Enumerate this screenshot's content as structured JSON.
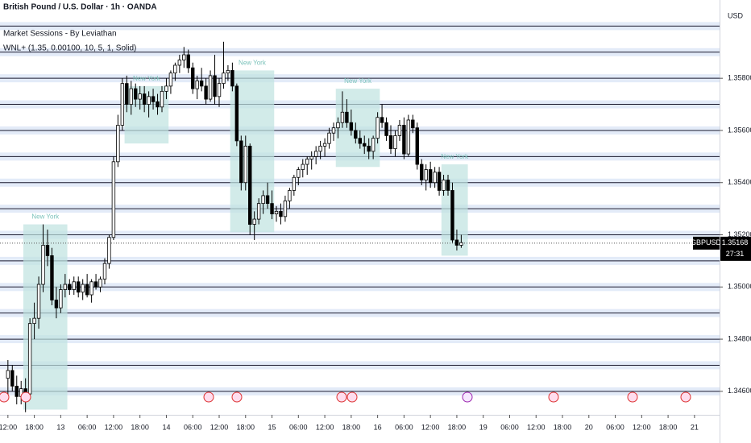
{
  "chart_data": {
    "type": "candlestick",
    "title": "British Pound / U.S. Dollar · 1h · OANDA",
    "indicators": [
      "Market Sessions - By Leviathan",
      "WNL+ (1.35, 0.00100, 10, 5, 1, Solid)"
    ],
    "currency": "USD",
    "symbol": "GBPUSD",
    "last_price": {
      "value": 1.35168,
      "label": "1.35168"
    },
    "countdown": "27:31",
    "open": [
      1.3465,
      1.3468,
      1.3462,
      1.3458,
      1.3461,
      1.3459,
      1.3486,
      1.3488,
      1.3501,
      1.3516,
      1.3512,
      1.3495,
      1.3492,
      1.3499,
      1.3501,
      1.3499,
      1.3502,
      1.3498,
      1.3501,
      1.3497,
      1.3502,
      1.35,
      1.3503,
      1.3509,
      1.3519,
      1.3548,
      1.3562,
      1.3578,
      1.357,
      1.3576,
      1.3572,
      1.3574,
      1.357,
      1.3573,
      1.3571,
      1.3569,
      1.3575,
      1.3577,
      1.3582,
      1.3585,
      1.3587,
      1.3589,
      1.3584,
      1.3576,
      1.3579,
      1.3577,
      1.3572,
      1.3581,
      1.3573,
      1.3578,
      1.3582,
      1.3583,
      1.3577,
      1.3556,
      1.354,
      1.3554,
      1.3524,
      1.3526,
      1.3532,
      1.3535,
      1.3532,
      1.3528,
      1.3529,
      1.3527,
      1.3533,
      1.3537,
      1.3542,
      1.3545,
      1.3547,
      1.3549,
      1.355,
      1.3552,
      1.3554,
      1.3555,
      1.3559,
      1.3561,
      1.3563,
      1.3567,
      1.3563,
      1.356,
      1.3557,
      1.3555,
      1.3554,
      1.3552,
      1.3557,
      1.3565,
      1.3563,
      1.3558,
      1.3553,
      1.3558,
      1.3562,
      1.3551,
      1.3564,
      1.3561,
      1.3547,
      1.3541,
      1.3545,
      1.354,
      1.3544,
      1.3537,
      1.3541,
      1.3537,
      1.3518,
      1.3516
    ],
    "high": [
      1.3472,
      1.347,
      1.3466,
      1.3464,
      1.3465,
      1.3488,
      1.3494,
      1.3504,
      1.3524,
      1.3522,
      1.3515,
      1.35,
      1.3501,
      1.3505,
      1.3503,
      1.3504,
      1.3504,
      1.3503,
      1.3505,
      1.3503,
      1.3505,
      1.3504,
      1.3511,
      1.352,
      1.355,
      1.3566,
      1.358,
      1.3581,
      1.3579,
      1.3578,
      1.3577,
      1.3577,
      1.3575,
      1.3576,
      1.3574,
      1.3577,
      1.358,
      1.3583,
      1.3586,
      1.3589,
      1.3592,
      1.3591,
      1.3586,
      1.3581,
      1.3584,
      1.358,
      1.3583,
      1.3589,
      1.358,
      1.3594,
      1.3585,
      1.3586,
      1.3578,
      1.3558,
      1.3558,
      1.3555,
      1.3529,
      1.3534,
      1.3537,
      1.354,
      1.3537,
      1.3531,
      1.3532,
      1.3535,
      1.3538,
      1.3543,
      1.3546,
      1.3549,
      1.355,
      1.3552,
      1.3554,
      1.3556,
      1.3557,
      1.3561,
      1.3563,
      1.3565,
      1.3575,
      1.3572,
      1.3568,
      1.3563,
      1.356,
      1.3558,
      1.3557,
      1.3558,
      1.3567,
      1.357,
      1.3565,
      1.3562,
      1.356,
      1.3564,
      1.3565,
      1.3566,
      1.3566,
      1.3563,
      1.3549,
      1.3547,
      1.3548,
      1.3546,
      1.3546,
      1.3543,
      1.3543,
      1.354,
      1.3522,
      1.352
    ],
    "low": [
      1.3458,
      1.346,
      1.3455,
      1.3455,
      1.3452,
      1.3458,
      1.348,
      1.3484,
      1.3498,
      1.3508,
      1.3493,
      1.3488,
      1.349,
      1.3496,
      1.3497,
      1.3497,
      1.3496,
      1.3495,
      1.3496,
      1.3494,
      1.3499,
      1.3498,
      1.3501,
      1.3507,
      1.3518,
      1.3546,
      1.356,
      1.3567,
      1.3566,
      1.3569,
      1.3568,
      1.3567,
      1.3565,
      1.3568,
      1.3566,
      1.3567,
      1.3572,
      1.3574,
      1.3579,
      1.3582,
      1.3584,
      1.3582,
      1.3574,
      1.3572,
      1.3575,
      1.357,
      1.3571,
      1.357,
      1.3569,
      1.3576,
      1.3579,
      1.3575,
      1.3554,
      1.3537,
      1.3537,
      1.352,
      1.3518,
      1.3524,
      1.3528,
      1.353,
      1.3526,
      1.3525,
      1.3524,
      1.3525,
      1.353,
      1.3535,
      1.3539,
      1.3542,
      1.3543,
      1.3545,
      1.3547,
      1.3549,
      1.355,
      1.3553,
      1.3556,
      1.3557,
      1.3561,
      1.3561,
      1.3558,
      1.3555,
      1.3553,
      1.3551,
      1.3549,
      1.3549,
      1.3555,
      1.3561,
      1.3556,
      1.3551,
      1.355,
      1.3556,
      1.3549,
      1.355,
      1.3559,
      1.3545,
      1.3539,
      1.3537,
      1.3538,
      1.3538,
      1.3535,
      1.3535,
      1.3535,
      1.3517,
      1.3514,
      1.3515
    ],
    "close": [
      1.3468,
      1.3462,
      1.3458,
      1.3461,
      1.3459,
      1.3486,
      1.3488,
      1.3501,
      1.3516,
      1.3512,
      1.3495,
      1.3492,
      1.3499,
      1.3501,
      1.3499,
      1.3502,
      1.3498,
      1.3501,
      1.3497,
      1.3502,
      1.35,
      1.3503,
      1.3509,
      1.3519,
      1.3548,
      1.3562,
      1.3578,
      1.357,
      1.3576,
      1.3572,
      1.3574,
      1.357,
      1.3573,
      1.3571,
      1.3569,
      1.3575,
      1.3577,
      1.3582,
      1.3585,
      1.3587,
      1.3589,
      1.3584,
      1.3576,
      1.3579,
      1.3577,
      1.3572,
      1.3581,
      1.3573,
      1.3578,
      1.3582,
      1.3583,
      1.3577,
      1.3556,
      1.354,
      1.3554,
      1.3524,
      1.3526,
      1.3532,
      1.3535,
      1.3532,
      1.3528,
      1.3529,
      1.3527,
      1.3533,
      1.3537,
      1.3542,
      1.3545,
      1.3547,
      1.3549,
      1.355,
      1.3552,
      1.3554,
      1.3555,
      1.3559,
      1.3561,
      1.3563,
      1.3567,
      1.3563,
      1.356,
      1.3557,
      1.3555,
      1.3554,
      1.3552,
      1.3557,
      1.3565,
      1.3563,
      1.3558,
      1.3553,
      1.3558,
      1.3562,
      1.3551,
      1.3564,
      1.3561,
      1.3547,
      1.3541,
      1.3545,
      1.354,
      1.3544,
      1.3537,
      1.3541,
      1.3537,
      1.3518,
      1.3516,
      1.3517
    ],
    "up_color": "#ffffff",
    "down_color": "#000000",
    "sessions": [
      {
        "label": "New York",
        "start": 4,
        "end": 13,
        "high": 1.3524,
        "low": 1.3453
      },
      {
        "label": "New York",
        "start": 27,
        "end": 36,
        "high": 1.3577,
        "low": 1.3555
      },
      {
        "label": "New York",
        "start": 51,
        "end": 60,
        "high": 1.3583,
        "low": 1.3521
      },
      {
        "label": "New York",
        "start": 75,
        "end": 84,
        "high": 1.3576,
        "low": 1.3546
      },
      {
        "label": "New York",
        "start": 99,
        "end": 104,
        "high": 1.3547,
        "low": 1.3512
      }
    ],
    "session_color": "#bfe3df",
    "levels": [
      1.346,
      1.347,
      1.348,
      1.349,
      1.35,
      1.351,
      1.352,
      1.353,
      1.354,
      1.355,
      1.356,
      1.357,
      1.358,
      1.359,
      1.36
    ],
    "ylim": [
      1.3451,
      1.361
    ],
    "yticks": [
      {
        "value": 1.346,
        "label": "1.34600"
      },
      {
        "value": 1.348,
        "label": "1.34800"
      },
      {
        "value": 1.35,
        "label": "1.35000"
      },
      {
        "value": 1.352,
        "label": "1.35200"
      },
      {
        "value": 1.354,
        "label": "1.35400"
      },
      {
        "value": 1.356,
        "label": "1.35600"
      },
      {
        "value": 1.358,
        "label": "1.35800"
      }
    ],
    "xlim": [
      -1.8,
      161.7
    ],
    "xticks": [
      {
        "value": 0,
        "label": "12:00"
      },
      {
        "value": 6,
        "label": "18:00"
      },
      {
        "value": 12,
        "label": "13"
      },
      {
        "value": 18,
        "label": "06:00"
      },
      {
        "value": 24,
        "label": "12:00"
      },
      {
        "value": 30,
        "label": "18:00"
      },
      {
        "value": 36,
        "label": "14"
      },
      {
        "value": 42,
        "label": "06:00"
      },
      {
        "value": 48,
        "label": "12:00"
      },
      {
        "value": 54,
        "label": "18:00"
      },
      {
        "value": 60,
        "label": "15"
      },
      {
        "value": 66,
        "label": "06:00"
      },
      {
        "value": 72,
        "label": "12:00"
      },
      {
        "value": 78,
        "label": "18:00"
      },
      {
        "value": 84,
        "label": "16"
      },
      {
        "value": 90,
        "label": "06:00"
      },
      {
        "value": 96,
        "label": "12:00"
      },
      {
        "value": 102,
        "label": "18:00"
      },
      {
        "value": 108,
        "label": "19"
      },
      {
        "value": 114,
        "label": "06:00"
      },
      {
        "value": 120,
        "label": "12:00"
      },
      {
        "value": 126,
        "label": "18:00"
      },
      {
        "value": 132,
        "label": "20"
      },
      {
        "value": 138,
        "label": "06:00"
      },
      {
        "value": 144,
        "label": "12:00"
      },
      {
        "value": 150,
        "label": "18:00"
      },
      {
        "value": 156,
        "label": "21"
      }
    ]
  }
}
